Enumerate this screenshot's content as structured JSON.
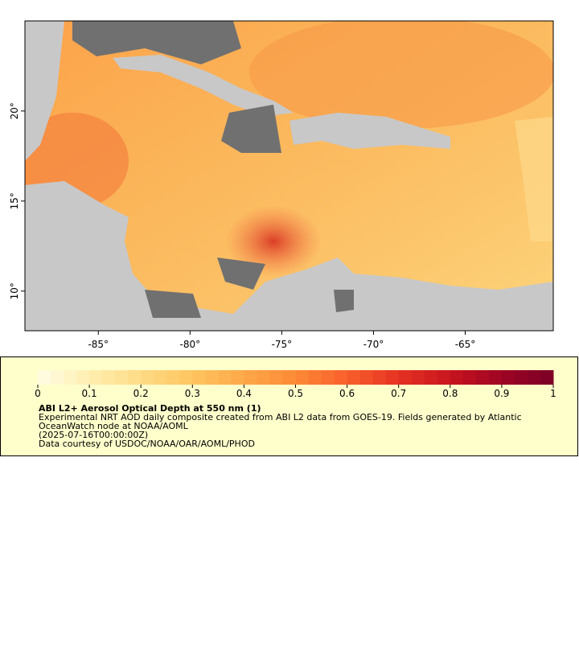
{
  "map": {
    "type": "map",
    "xlim": [
      -89,
      -60.2
    ],
    "ylim": [
      7.8,
      25
    ],
    "xticks": [
      {
        "value": -85,
        "label": "-85°"
      },
      {
        "value": -80,
        "label": "-80°"
      },
      {
        "value": -75,
        "label": "-75°"
      },
      {
        "value": -70,
        "label": "-70°"
      },
      {
        "value": -65,
        "label": "-65°"
      }
    ],
    "yticks": [
      {
        "value": 20,
        "label": "20°"
      },
      {
        "value": 15,
        "label": "15°"
      },
      {
        "value": 10,
        "label": "10°"
      }
    ]
  },
  "legend": {
    "colorbar": {
      "lim": [
        0,
        1
      ],
      "ticks": [
        0,
        0.1,
        0.2,
        0.3,
        0.4,
        0.5,
        0.6,
        0.7,
        0.8,
        0.9,
        1
      ],
      "colors": [
        "#fffde6",
        "#ffeeb0",
        "#fedb86",
        "#fec560",
        "#fda848",
        "#fc8a36",
        "#f8602c",
        "#e63222",
        "#c8141e",
        "#9e0524",
        "#7a0026"
      ]
    },
    "title": "ABI L2+ Aerosol Optical Depth at 550 nm (1)",
    "lines": [
      "Experimental NRT AOD daily composite created from ABI L2 data from GOES-19. Fields generated by Atlantic",
      "OceanWatch node at NOAA/AOML",
      "(2025-07-16T00:00:00Z)",
      "Data courtesy of USDOC/NOAA/OAR/AOML/PHOD"
    ]
  }
}
